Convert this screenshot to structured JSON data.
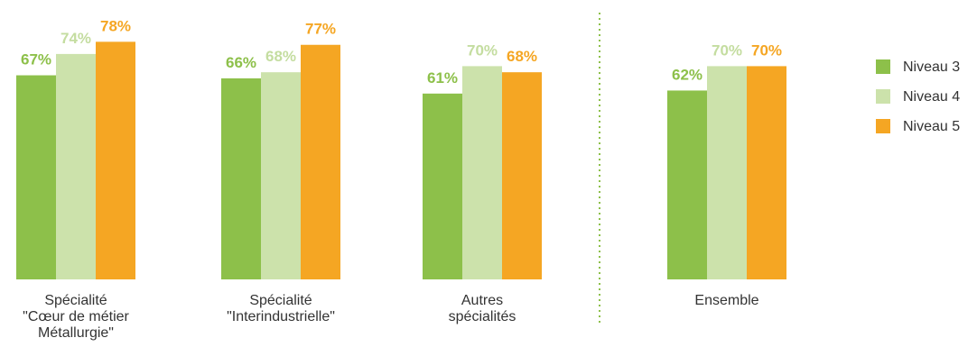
{
  "chart_data": {
    "type": "bar",
    "categories": [
      [
        "Spécialité",
        "\"Cœur de métier",
        "Métallurgie\""
      ],
      [
        "Spécialité",
        "\"Interindustrielle\""
      ],
      [
        "Autres",
        "spécialités"
      ],
      [
        "Ensemble"
      ]
    ],
    "series": [
      {
        "name": "Niveau 3",
        "values": [
          67,
          66,
          61,
          62
        ],
        "color": "#8dc04a",
        "labels": [
          "67%",
          "66%",
          "61%",
          "62%"
        ]
      },
      {
        "name": "Niveau 4",
        "values": [
          74,
          68,
          70,
          70
        ],
        "color": "#cce2ab",
        "labels": [
          "74%",
          "68%",
          "70%",
          "70%"
        ]
      },
      {
        "name": "Niveau 5",
        "values": [
          78,
          77,
          68,
          70
        ],
        "color": "#f5a623",
        "labels": [
          "78%",
          "77%",
          "68%",
          "70%"
        ]
      }
    ],
    "label_colors": [
      "#8dc04a",
      "#c4dda0",
      "#f5a623"
    ],
    "divider_color": "#8dc04a",
    "divider_after_category": 2,
    "ylim": [
      0,
      100
    ],
    "legend_position": "right",
    "title": "",
    "xlabel": "",
    "ylabel": ""
  }
}
